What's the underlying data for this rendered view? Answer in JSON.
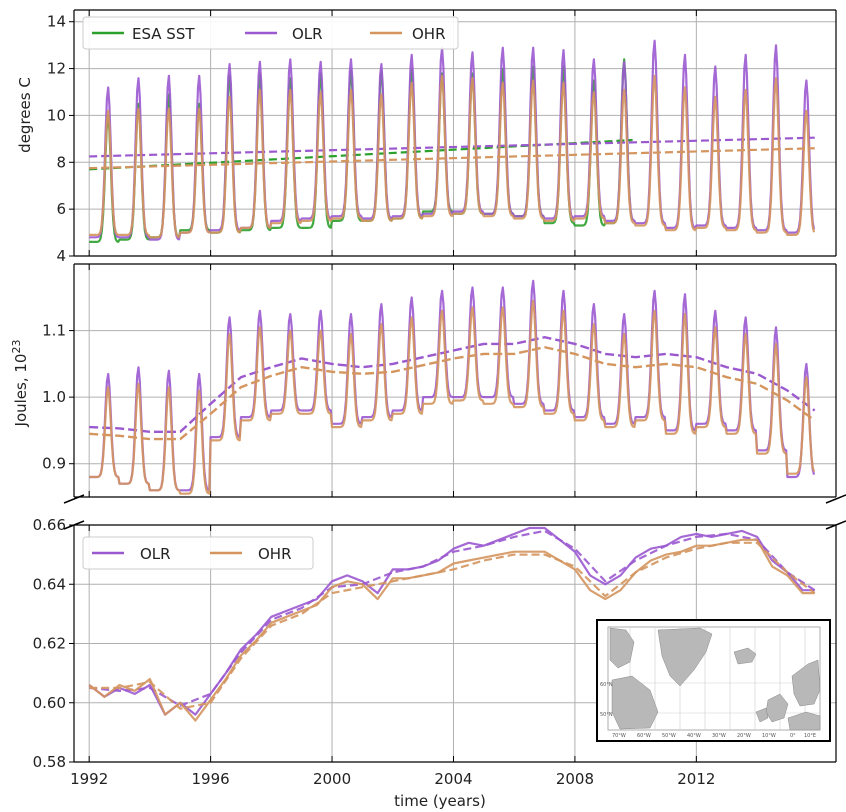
{
  "chart_data": [
    {
      "type": "line",
      "panel": "top",
      "ylabel": "degrees C",
      "ylim": [
        4,
        14.5
      ],
      "xlim": [
        1991.5,
        2016.6
      ],
      "yticks": [
        4,
        6,
        8,
        10,
        12,
        14
      ],
      "ytick_labels": [
        "4",
        "6",
        "8",
        "10",
        "12",
        "14"
      ],
      "grid": true,
      "legend_position": "top-left",
      "legend": [
        "ESA SST",
        "OLR",
        "OHR"
      ],
      "series": [
        {
          "name": "ESA SST",
          "color": "#2ca02c",
          "seasonal": true,
          "x_range": [
            1992.0,
            2009.9
          ],
          "annual_min": [
            4.6,
            4.7,
            4.8,
            5.1,
            5.0,
            5.1,
            5.2,
            5.2,
            5.5,
            5.5,
            5.6,
            5.9,
            5.8,
            5.8,
            5.7,
            5.4,
            5.3,
            5.4
          ],
          "annual_max": [
            10.0,
            10.5,
            10.9,
            10.5,
            11.7,
            11.8,
            11.6,
            11.8,
            11.9,
            11.9,
            12.0,
            11.8,
            11.8,
            12.0,
            12.1,
            12.1,
            11.5,
            12.4
          ],
          "trend": [
            7.7,
            8.95
          ]
        },
        {
          "name": "OLR",
          "color": "#9b59d0",
          "seasonal": true,
          "x_range": [
            1992.0,
            2015.9
          ],
          "annual_min": [
            4.8,
            4.8,
            4.7,
            5.0,
            5.1,
            5.2,
            5.5,
            5.6,
            5.7,
            5.6,
            5.7,
            5.8,
            5.9,
            5.8,
            5.7,
            5.6,
            5.7,
            5.5,
            5.4,
            5.2,
            5.3,
            5.2,
            5.1,
            5.0
          ],
          "annual_max": [
            11.2,
            11.6,
            11.7,
            11.7,
            12.2,
            12.3,
            12.4,
            12.3,
            12.4,
            12.2,
            12.6,
            12.9,
            12.7,
            12.9,
            12.9,
            12.8,
            12.4,
            12.3,
            13.2,
            12.6,
            12.1,
            12.6,
            13.0,
            11.5
          ],
          "trend": [
            8.25,
            9.05
          ]
        },
        {
          "name": "OHR",
          "color": "#d4955e",
          "seasonal": true,
          "x_range": [
            1992.0,
            2015.9
          ],
          "annual_min": [
            4.9,
            4.9,
            4.8,
            5.0,
            5.0,
            5.2,
            5.4,
            5.5,
            5.6,
            5.5,
            5.6,
            5.7,
            5.8,
            5.7,
            5.6,
            5.5,
            5.6,
            5.4,
            5.3,
            5.1,
            5.2,
            5.1,
            5.0,
            4.9
          ],
          "annual_max": [
            10.2,
            10.3,
            10.3,
            10.3,
            10.8,
            11.1,
            11.1,
            11.0,
            11.1,
            10.9,
            11.4,
            11.7,
            11.6,
            11.4,
            11.5,
            11.4,
            11.0,
            11.1,
            11.7,
            11.2,
            10.8,
            11.1,
            11.6,
            10.2
          ],
          "trend": [
            7.75,
            8.6
          ]
        }
      ]
    },
    {
      "type": "line",
      "panel": "middle",
      "ylabel": "Joules, 10²³",
      "ylim": [
        0.85,
        1.2
      ],
      "xlim": [
        1991.5,
        2016.6
      ],
      "yticks": [
        0.9,
        1.0,
        1.1
      ],
      "ytick_labels": [
        "0.9",
        "1.0",
        "1.1"
      ],
      "grid": true,
      "series": [
        {
          "name": "OLR",
          "color": "#9b59d0",
          "x_range": [
            1992.0,
            2015.9
          ],
          "annual_min": [
            0.88,
            0.87,
            0.86,
            0.86,
            0.94,
            0.97,
            0.98,
            0.98,
            0.96,
            0.97,
            0.98,
            1.0,
            1.0,
            1.0,
            0.99,
            0.98,
            0.97,
            0.96,
            0.97,
            0.95,
            0.96,
            0.95,
            0.92,
            0.88
          ],
          "annual_max": [
            1.035,
            1.045,
            1.04,
            1.035,
            1.12,
            1.13,
            1.125,
            1.13,
            1.125,
            1.14,
            1.15,
            1.16,
            1.165,
            1.165,
            1.175,
            1.16,
            1.14,
            1.125,
            1.16,
            1.155,
            1.13,
            1.12,
            1.105,
            1.05
          ],
          "baseline_x": [
            1992.0,
            1993.0,
            1994.0,
            1995.0,
            1996.0,
            1997.0,
            1998.0,
            1999.0,
            2000.0,
            2001.0,
            2002.0,
            2003.0,
            2004.0,
            2005.0,
            2006.0,
            2007.0,
            2008.0,
            2009.0,
            2010.0,
            2011.0,
            2012.0,
            2013.0,
            2014.0,
            2015.0,
            2015.9
          ],
          "baseline_y": [
            0.955,
            0.953,
            0.948,
            0.948,
            0.99,
            1.03,
            1.045,
            1.058,
            1.05,
            1.045,
            1.05,
            1.06,
            1.07,
            1.08,
            1.08,
            1.09,
            1.08,
            1.065,
            1.06,
            1.065,
            1.06,
            1.045,
            1.035,
            1.01,
            0.98
          ]
        },
        {
          "name": "OHR",
          "color": "#d4955e",
          "x_range": [
            1992.0,
            2015.9
          ],
          "annual_min": [
            0.88,
            0.87,
            0.86,
            0.855,
            0.935,
            0.965,
            0.975,
            0.975,
            0.955,
            0.965,
            0.975,
            0.99,
            0.995,
            0.99,
            0.985,
            0.975,
            0.965,
            0.955,
            0.965,
            0.945,
            0.955,
            0.945,
            0.915,
            0.885
          ],
          "annual_max": [
            1.015,
            1.02,
            1.015,
            1.01,
            1.095,
            1.105,
            1.1,
            1.1,
            1.095,
            1.11,
            1.12,
            1.13,
            1.135,
            1.135,
            1.145,
            1.13,
            1.11,
            1.095,
            1.13,
            1.125,
            1.105,
            1.095,
            1.08,
            1.03
          ],
          "baseline_x": [
            1992.0,
            1993.0,
            1994.0,
            1995.0,
            1996.0,
            1997.0,
            1998.0,
            1999.0,
            2000.0,
            2001.0,
            2002.0,
            2003.0,
            2004.0,
            2005.0,
            2006.0,
            2007.0,
            2008.0,
            2009.0,
            2010.0,
            2011.0,
            2012.0,
            2013.0,
            2014.0,
            2015.0,
            2015.9
          ],
          "baseline_y": [
            0.945,
            0.942,
            0.937,
            0.937,
            0.975,
            1.015,
            1.032,
            1.045,
            1.038,
            1.035,
            1.038,
            1.048,
            1.058,
            1.065,
            1.065,
            1.075,
            1.065,
            1.05,
            1.045,
            1.05,
            1.045,
            1.03,
            1.02,
            0.995,
            0.965
          ]
        }
      ]
    },
    {
      "type": "line",
      "panel": "bottom",
      "xlabel": "time (years)",
      "ylim": [
        0.58,
        0.66
      ],
      "xlim": [
        1991.5,
        2016.6
      ],
      "yticks": [
        0.58,
        0.6,
        0.62,
        0.64,
        0.66
      ],
      "ytick_labels": [
        "0.58",
        "0.60",
        "0.62",
        "0.64",
        "0.66"
      ],
      "xticks": [
        1992,
        1996,
        2000,
        2004,
        2008,
        2012
      ],
      "xtick_labels": [
        "1992",
        "1996",
        "2000",
        "2004",
        "2008",
        "2012"
      ],
      "grid": true,
      "legend_position": "top-left",
      "legend": [
        "OLR",
        "OHR"
      ],
      "series": [
        {
          "name": "OLR",
          "color": "#9b59d0",
          "x": [
            1992.0,
            1992.5,
            1993.0,
            1993.5,
            1994.0,
            1994.5,
            1995.0,
            1995.5,
            1996.0,
            1996.5,
            1997.0,
            1997.5,
            1998.0,
            1998.5,
            1999.0,
            1999.5,
            2000.0,
            2000.5,
            2001.0,
            2001.5,
            2002.0,
            2002.5,
            2003.0,
            2003.5,
            2004.0,
            2004.5,
            2005.0,
            2005.5,
            2006.0,
            2006.5,
            2007.0,
            2007.5,
            2008.0,
            2008.5,
            2009.0,
            2009.5,
            2010.0,
            2010.5,
            2011.0,
            2011.5,
            2012.0,
            2012.5,
            2013.0,
            2013.5,
            2014.0,
            2014.5,
            2015.0,
            2015.5,
            2015.9
          ],
          "y": [
            0.606,
            0.602,
            0.605,
            0.603,
            0.606,
            0.596,
            0.6,
            0.596,
            0.603,
            0.61,
            0.618,
            0.623,
            0.629,
            0.631,
            0.633,
            0.635,
            0.641,
            0.643,
            0.641,
            0.637,
            0.645,
            0.645,
            0.646,
            0.648,
            0.652,
            0.654,
            0.653,
            0.655,
            0.657,
            0.659,
            0.659,
            0.655,
            0.651,
            0.643,
            0.64,
            0.643,
            0.649,
            0.652,
            0.653,
            0.656,
            0.657,
            0.656,
            0.657,
            0.658,
            0.656,
            0.648,
            0.644,
            0.638,
            0.638
          ]
        },
        {
          "name": "OLR",
          "color": "#9b59d0",
          "dashed": true,
          "x": [
            1992.0,
            1993.0,
            1994.0,
            1995.0,
            1996.0,
            1997.0,
            1998.0,
            1999.0,
            2000.0,
            2001.0,
            2002.0,
            2003.0,
            2004.0,
            2005.0,
            2006.0,
            2007.0,
            2008.0,
            2009.0,
            2010.0,
            2011.0,
            2012.0,
            2013.0,
            2014.0,
            2015.0,
            2015.9
          ],
          "y": [
            0.605,
            0.604,
            0.605,
            0.599,
            0.603,
            0.617,
            0.628,
            0.632,
            0.639,
            0.64,
            0.644,
            0.646,
            0.651,
            0.653,
            0.656,
            0.658,
            0.652,
            0.641,
            0.648,
            0.653,
            0.656,
            0.657,
            0.655,
            0.644,
            0.638
          ]
        },
        {
          "name": "OHR",
          "color": "#d4955e",
          "x": [
            1992.0,
            1992.5,
            1993.0,
            1993.5,
            1994.0,
            1994.5,
            1995.0,
            1995.5,
            1996.0,
            1996.5,
            1997.0,
            1997.5,
            1998.0,
            1998.5,
            1999.0,
            1999.5,
            2000.0,
            2000.5,
            2001.0,
            2001.5,
            2002.0,
            2002.5,
            2003.0,
            2003.5,
            2004.0,
            2004.5,
            2005.0,
            2005.5,
            2006.0,
            2006.5,
            2007.0,
            2007.5,
            2008.0,
            2008.5,
            2009.0,
            2009.5,
            2010.0,
            2010.5,
            2011.0,
            2011.5,
            2012.0,
            2012.5,
            2013.0,
            2013.5,
            2014.0,
            2014.5,
            2015.0,
            2015.5,
            2015.9
          ],
          "y": [
            0.606,
            0.602,
            0.606,
            0.604,
            0.608,
            0.596,
            0.6,
            0.594,
            0.601,
            0.608,
            0.616,
            0.621,
            0.627,
            0.629,
            0.631,
            0.633,
            0.639,
            0.641,
            0.64,
            0.635,
            0.642,
            0.642,
            0.643,
            0.644,
            0.647,
            0.648,
            0.649,
            0.65,
            0.651,
            0.651,
            0.651,
            0.648,
            0.645,
            0.638,
            0.635,
            0.638,
            0.644,
            0.648,
            0.65,
            0.651,
            0.653,
            0.653,
            0.654,
            0.655,
            0.655,
            0.646,
            0.643,
            0.637,
            0.637
          ]
        },
        {
          "name": "OHR",
          "color": "#d4955e",
          "dashed": true,
          "x": [
            1992.0,
            1993.0,
            1994.0,
            1995.0,
            1996.0,
            1997.0,
            1998.0,
            1999.0,
            2000.0,
            2001.0,
            2002.0,
            2003.0,
            2004.0,
            2005.0,
            2006.0,
            2007.0,
            2008.0,
            2009.0,
            2010.0,
            2011.0,
            2012.0,
            2013.0,
            2014.0,
            2015.0,
            2015.9
          ],
          "y": [
            0.605,
            0.605,
            0.607,
            0.598,
            0.6,
            0.615,
            0.626,
            0.63,
            0.637,
            0.639,
            0.641,
            0.643,
            0.645,
            0.648,
            0.65,
            0.65,
            0.646,
            0.636,
            0.644,
            0.649,
            0.652,
            0.654,
            0.654,
            0.644,
            0.637
          ]
        }
      ]
    }
  ]
}
